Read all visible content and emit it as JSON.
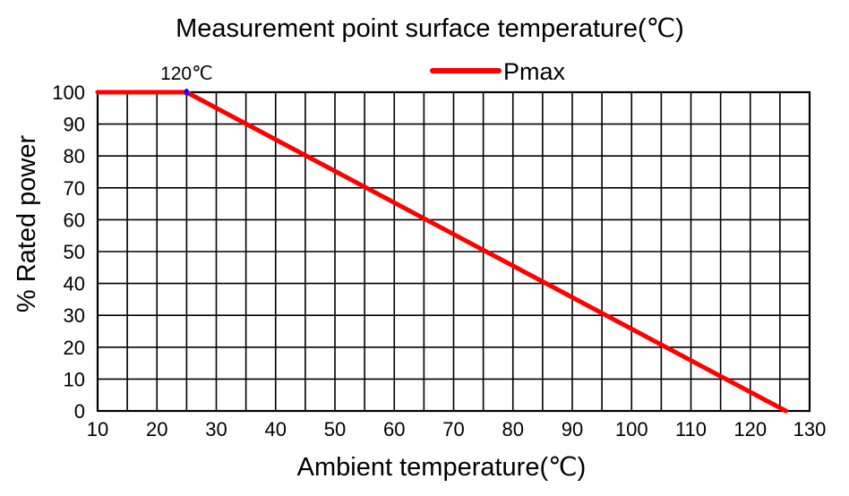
{
  "chart_data": {
    "type": "line",
    "title": "Measurement point surface temperature(℃)",
    "xlabel": "Ambient temperature(℃)",
    "ylabel": "% Rated power",
    "xlim": [
      10,
      130
    ],
    "ylim": [
      0,
      100
    ],
    "xticks": [
      10,
      20,
      30,
      40,
      50,
      60,
      70,
      80,
      90,
      100,
      110,
      120,
      130
    ],
    "yticks": [
      0,
      10,
      20,
      30,
      40,
      50,
      60,
      70,
      80,
      90,
      100
    ],
    "xtick_labels": [
      "10",
      "20",
      "30",
      "40",
      "50",
      "60",
      "70",
      "80",
      "90",
      "100",
      "110",
      "120",
      "130"
    ],
    "ytick_labels": [
      "0",
      "10",
      "20",
      "30",
      "40",
      "50",
      "60",
      "70",
      "80",
      "90",
      "100"
    ],
    "grid": true,
    "minor_grid_x_step": 5,
    "legend_position": "top-center",
    "series": [
      {
        "name": "Pmax",
        "color": "#ff0000",
        "x": [
          10,
          25,
          126
        ],
        "y": [
          100,
          100,
          0
        ]
      }
    ],
    "annotations": [
      {
        "text": "120℃",
        "x": 25,
        "y": 100,
        "marker_color": "#0000ff"
      }
    ]
  }
}
